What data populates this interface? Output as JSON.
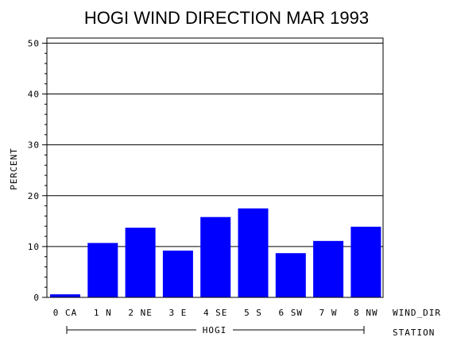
{
  "chart_data": {
    "type": "bar",
    "title": "HOGI WIND DIRECTION MAR 1993",
    "ylabel": "PERCENT",
    "xlabel": "WIND_DIR",
    "group_label_title": "STATION",
    "group": "HOGI",
    "categories": [
      "0 CA",
      "1 N",
      "2 NE",
      "3 E",
      "4 SE",
      "5 S",
      "6 SW",
      "7 W",
      "8 NW"
    ],
    "values": [
      0.6,
      10.7,
      13.7,
      9.2,
      15.8,
      17.5,
      8.7,
      11.1,
      13.9
    ],
    "ylim": [
      0,
      51
    ],
    "yticks": [
      "0",
      "10",
      "20",
      "30",
      "40",
      "50"
    ],
    "grid": true,
    "bar_color": "#0000ff"
  }
}
